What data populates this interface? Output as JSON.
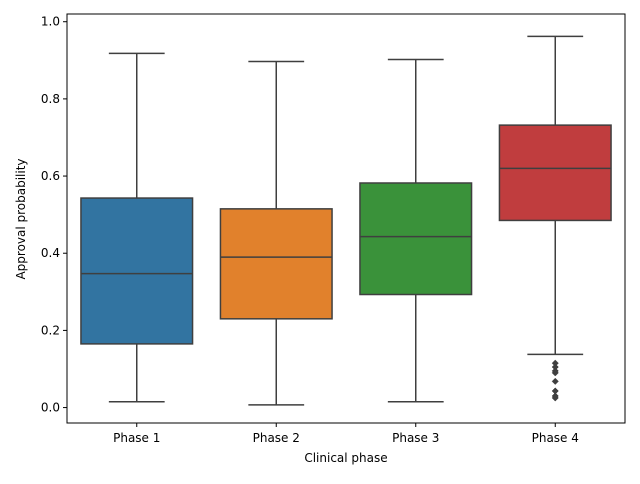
{
  "chart_data": {
    "type": "box",
    "xlabel": "Clinical phase",
    "ylabel": "Approval probability",
    "ylim": [
      -0.04,
      1.02
    ],
    "yticks": [
      0.0,
      0.2,
      0.4,
      0.6,
      0.8,
      1.0
    ],
    "ytick_labels": [
      "0.0",
      "0.2",
      "0.4",
      "0.6",
      "0.8",
      "1.0"
    ],
    "grid": false,
    "categories": [
      "Phase 1",
      "Phase 2",
      "Phase 3",
      "Phase 4"
    ],
    "boxes": [
      {
        "category": "Phase 1",
        "whisker_low": 0.015,
        "q1": 0.165,
        "median": 0.347,
        "q3": 0.543,
        "whisker_high": 0.918,
        "outliers": [],
        "color": "#3274a1"
      },
      {
        "category": "Phase 2",
        "whisker_low": 0.007,
        "q1": 0.23,
        "median": 0.39,
        "q3": 0.515,
        "whisker_high": 0.897,
        "outliers": [],
        "color": "#e1812c"
      },
      {
        "category": "Phase 3",
        "whisker_low": 0.015,
        "q1": 0.293,
        "median": 0.443,
        "q3": 0.582,
        "whisker_high": 0.902,
        "outliers": [],
        "color": "#3a923a"
      },
      {
        "category": "Phase 4",
        "whisker_low": 0.138,
        "q1": 0.485,
        "median": 0.62,
        "q3": 0.732,
        "whisker_high": 0.962,
        "outliers": [
          0.115,
          0.105,
          0.095,
          0.09,
          0.068,
          0.043,
          0.03,
          0.025
        ],
        "color": "#c03d3e"
      }
    ],
    "line_color": "#3f3f3f"
  }
}
